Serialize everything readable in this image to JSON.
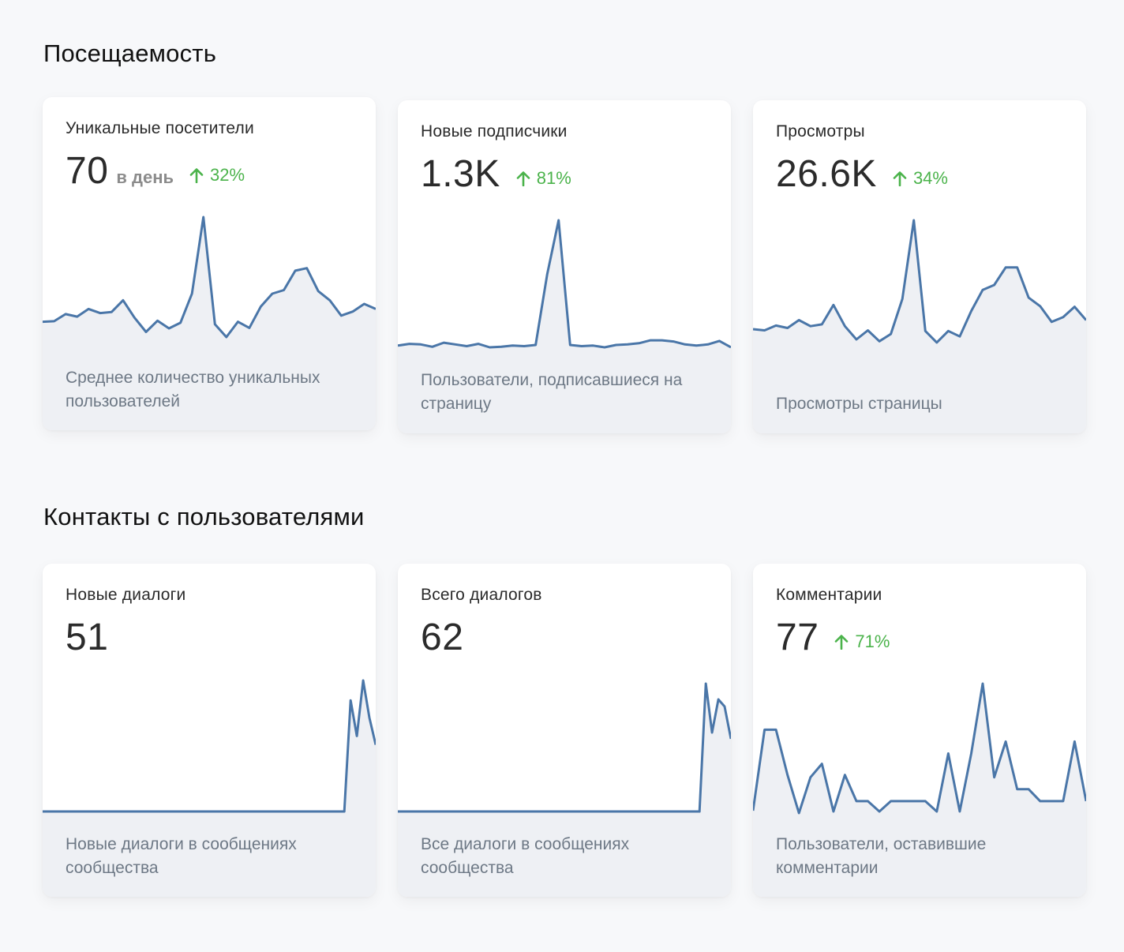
{
  "colors": {
    "accent_line": "#4a76a8",
    "area_fill": "#eef0f4",
    "positive_change": "#4bb34b"
  },
  "sections": [
    {
      "title": "Посещаемость",
      "cards": [
        {
          "title": "Уникальные посетители",
          "value": "70",
          "unit": "в день",
          "change": "32%",
          "change_icon": "arrow-up-icon",
          "description": "Среднее количество уникальных пользователей",
          "series": [
            30,
            31,
            45,
            40,
            55,
            47,
            49,
            72,
            38,
            10,
            32,
            17,
            28,
            85,
            235,
            25,
            0,
            30,
            18,
            60,
            85,
            92,
            130,
            135,
            90,
            72,
            42,
            50,
            65,
            55
          ]
        },
        {
          "title": "Новые подписчики",
          "value": "1.3K",
          "unit": "",
          "change": "81%",
          "change_icon": "arrow-up-icon",
          "description": "Пользователи, подписавшиеся на страницу",
          "series": [
            3,
            6,
            5,
            1,
            8,
            5,
            2,
            6,
            0,
            1,
            3,
            2,
            4,
            125,
            218,
            4,
            2,
            3,
            0,
            4,
            5,
            7,
            12,
            12,
            10,
            5,
            3,
            5,
            11,
            0
          ]
        },
        {
          "title": "Просмотры",
          "value": "26.6K",
          "unit": "",
          "change": "34%",
          "change_icon": "arrow-up-icon",
          "description": "Просмотры страницы",
          "series": [
            30,
            28,
            36,
            32,
            45,
            35,
            38,
            70,
            35,
            13,
            28,
            10,
            22,
            80,
            210,
            27,
            8,
            27,
            18,
            60,
            95,
            103,
            132,
            132,
            82,
            68,
            42,
            50,
            67,
            45
          ]
        }
      ]
    },
    {
      "title": "Контакты с пользователями",
      "cards": [
        {
          "title": "Новые диалоги",
          "value": "51",
          "unit": "",
          "change": "",
          "change_icon": "",
          "description": "Новые диалоги в сообщениях сообщества",
          "series": [
            0,
            0,
            0,
            0,
            0,
            0,
            0,
            0,
            0,
            0,
            0,
            0,
            0,
            0,
            0,
            0,
            0,
            0,
            0,
            0,
            0,
            0,
            0,
            0,
            0,
            0,
            0,
            0,
            0,
            0,
            0,
            0,
            0,
            0,
            0,
            0,
            0,
            0,
            0,
            0,
            0,
            0,
            0,
            0,
            0,
            0,
            0,
            0,
            0,
            140,
            95,
            165,
            118,
            84
          ]
        },
        {
          "title": "Всего диалогов",
          "value": "62",
          "unit": "",
          "change": "",
          "change_icon": "",
          "description": "Все диалоги в сообщениях сообщества",
          "series": [
            0,
            0,
            0,
            0,
            0,
            0,
            0,
            0,
            0,
            0,
            0,
            0,
            0,
            0,
            0,
            0,
            0,
            0,
            0,
            0,
            0,
            0,
            0,
            0,
            0,
            0,
            0,
            0,
            0,
            0,
            0,
            0,
            0,
            0,
            0,
            0,
            0,
            0,
            0,
            0,
            0,
            0,
            0,
            0,
            0,
            0,
            0,
            0,
            0,
            162,
            100,
            142,
            133,
            92
          ]
        },
        {
          "title": "Комментарии",
          "value": "77",
          "unit": "",
          "change": "71%",
          "change_icon": "arrow-up-icon",
          "description": "Пользователи, оставившие комментарии",
          "series": [
            3,
            105,
            105,
            48,
            0,
            45,
            62,
            2,
            48,
            15,
            15,
            2,
            15,
            15,
            15,
            15,
            2,
            75,
            2,
            75,
            163,
            45,
            90,
            30,
            30,
            15,
            15,
            15,
            90,
            15
          ]
        }
      ]
    }
  ]
}
